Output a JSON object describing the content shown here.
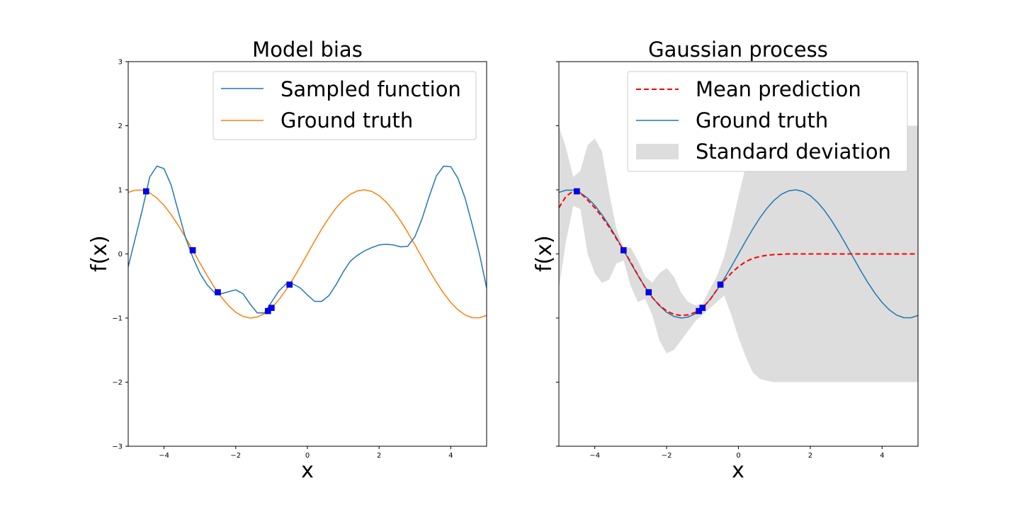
{
  "chart_data": [
    {
      "type": "line",
      "title": "Model bias",
      "xlabel": "x",
      "ylabel": "f(x)",
      "xlim": [
        -5,
        5
      ],
      "ylim": [
        -3,
        3
      ],
      "xticks": [
        -4,
        -2,
        0,
        2,
        4
      ],
      "xtick_labels": [
        "−4",
        "−2",
        "0",
        "2",
        "4"
      ],
      "yticks": [
        -3,
        -2,
        -1,
        0,
        1,
        2,
        3
      ],
      "ytick_labels": [
        "−3",
        "−2",
        "−1",
        "0",
        "1",
        "2",
        "3"
      ],
      "legend_position": "top-right",
      "series": [
        {
          "name": "Sampled function",
          "color": "#1f77b4",
          "style": "solid",
          "x": [
            -5.0,
            -4.6,
            -4.4,
            -4.2,
            -4.0,
            -3.8,
            -3.6,
            -3.4,
            -3.2,
            -3.0,
            -2.8,
            -2.6,
            -2.4,
            -2.2,
            -2.0,
            -1.8,
            -1.6,
            -1.4,
            -1.2,
            -1.0,
            -0.8,
            -0.6,
            -0.4,
            -0.2,
            0.0,
            0.2,
            0.4,
            0.6,
            0.8,
            1.0,
            1.2,
            1.4,
            1.6,
            1.8,
            2.0,
            2.2,
            2.4,
            2.6,
            2.8,
            3.0,
            3.2,
            3.4,
            3.6,
            3.8,
            4.0,
            4.2,
            4.4,
            4.6,
            4.8,
            5.0
          ],
          "y": [
            -0.2,
            0.7,
            1.2,
            1.37,
            1.33,
            1.07,
            0.66,
            0.25,
            -0.05,
            -0.3,
            -0.48,
            -0.6,
            -0.62,
            -0.59,
            -0.56,
            -0.62,
            -0.78,
            -0.92,
            -0.92,
            -0.75,
            -0.58,
            -0.47,
            -0.47,
            -0.53,
            -0.64,
            -0.74,
            -0.74,
            -0.65,
            -0.48,
            -0.28,
            -0.11,
            -0.02,
            0.05,
            0.1,
            0.14,
            0.15,
            0.14,
            0.11,
            0.12,
            0.27,
            0.55,
            0.9,
            1.22,
            1.37,
            1.36,
            1.18,
            0.87,
            0.45,
            0.0,
            -0.53
          ]
        },
        {
          "name": "Ground truth",
          "color": "#ff7f0e",
          "style": "solid",
          "x": [
            -5.0,
            -4.8,
            -4.6,
            -4.4,
            -4.2,
            -4.0,
            -3.8,
            -3.6,
            -3.4,
            -3.2,
            -3.0,
            -2.8,
            -2.6,
            -2.4,
            -2.2,
            -2.0,
            -1.8,
            -1.6,
            -1.4,
            -1.2,
            -1.0,
            -0.8,
            -0.6,
            -0.4,
            -0.2,
            0.0,
            0.2,
            0.4,
            0.6,
            0.8,
            1.0,
            1.2,
            1.4,
            1.6,
            1.8,
            2.0,
            2.2,
            2.4,
            2.6,
            2.8,
            3.0,
            3.2,
            3.4,
            3.6,
            3.8,
            4.0,
            4.2,
            4.4,
            4.6,
            4.8,
            5.0
          ],
          "y": [
            0.959,
            0.996,
            0.994,
            0.952,
            0.872,
            0.757,
            0.612,
            0.443,
            0.256,
            0.058,
            -0.141,
            -0.335,
            -0.516,
            -0.675,
            -0.808,
            -0.909,
            -0.974,
            -1.0,
            -0.985,
            -0.932,
            -0.841,
            -0.717,
            -0.565,
            -0.389,
            -0.199,
            0.0,
            0.199,
            0.389,
            0.565,
            0.717,
            0.841,
            0.932,
            0.985,
            1.0,
            0.974,
            0.909,
            0.808,
            0.675,
            0.516,
            0.335,
            0.141,
            -0.058,
            -0.256,
            -0.443,
            -0.612,
            -0.757,
            -0.872,
            -0.952,
            -0.994,
            -0.996,
            -0.959
          ]
        }
      ],
      "observations": {
        "x": [
          -4.5,
          -3.2,
          -2.5,
          -1.1,
          -1.0,
          -0.5
        ],
        "y": [
          0.977,
          0.058,
          -0.598,
          -0.891,
          -0.841,
          -0.479
        ]
      }
    },
    {
      "type": "line",
      "title": "Gaussian process",
      "xlabel": "x",
      "ylabel": "f(x)",
      "xlim": [
        -5,
        5
      ],
      "ylim": [
        -3,
        3
      ],
      "xticks": [
        -4,
        -2,
        0,
        2,
        4
      ],
      "xtick_labels": [
        "−4",
        "−2",
        "0",
        "2",
        "4"
      ],
      "yticks": [
        -3,
        -2,
        -1,
        0,
        1,
        2,
        3
      ],
      "ytick_labels": [],
      "legend_position": "top-right",
      "series": [
        {
          "name": "Mean prediction",
          "color": "#ff0000",
          "style": "dashed",
          "x": [
            -5.0,
            -4.8,
            -4.6,
            -4.4,
            -4.2,
            -4.0,
            -3.8,
            -3.6,
            -3.4,
            -3.2,
            -3.0,
            -2.8,
            -2.6,
            -2.4,
            -2.2,
            -2.0,
            -1.8,
            -1.6,
            -1.4,
            -1.2,
            -1.0,
            -0.8,
            -0.6,
            -0.4,
            -0.2,
            0.0,
            0.2,
            0.4,
            0.6,
            0.8,
            1.0,
            1.2,
            1.4,
            1.6,
            1.8,
            2.0,
            2.2,
            2.4,
            2.6,
            2.8,
            3.0,
            3.2,
            3.4,
            3.6,
            3.8,
            4.0,
            4.2,
            4.4,
            4.6,
            4.8,
            5.0
          ],
          "y": [
            0.72,
            0.9,
            0.98,
            0.95,
            0.84,
            0.72,
            0.58,
            0.42,
            0.24,
            0.06,
            -0.13,
            -0.33,
            -0.52,
            -0.68,
            -0.8,
            -0.89,
            -0.94,
            -0.96,
            -0.95,
            -0.91,
            -0.84,
            -0.72,
            -0.56,
            -0.42,
            -0.3,
            -0.2,
            -0.12,
            -0.07,
            -0.04,
            -0.02,
            -0.01,
            -0.005,
            0.0,
            0.0,
            0.0,
            0.0,
            0.0,
            0.0,
            0.0,
            0.0,
            0.0,
            0.0,
            0.0,
            0.0,
            0.0,
            0.0,
            0.0,
            0.0,
            0.0,
            0.0,
            0.0
          ]
        },
        {
          "name": "Ground truth",
          "color": "#1f77b4",
          "style": "solid",
          "x": [
            -5.0,
            -4.8,
            -4.6,
            -4.4,
            -4.2,
            -4.0,
            -3.8,
            -3.6,
            -3.4,
            -3.2,
            -3.0,
            -2.8,
            -2.6,
            -2.4,
            -2.2,
            -2.0,
            -1.8,
            -1.6,
            -1.4,
            -1.2,
            -1.0,
            -0.8,
            -0.6,
            -0.4,
            -0.2,
            0.0,
            0.2,
            0.4,
            0.6,
            0.8,
            1.0,
            1.2,
            1.4,
            1.6,
            1.8,
            2.0,
            2.2,
            2.4,
            2.6,
            2.8,
            3.0,
            3.2,
            3.4,
            3.6,
            3.8,
            4.0,
            4.2,
            4.4,
            4.6,
            4.8,
            5.0
          ],
          "y": [
            0.959,
            0.996,
            0.994,
            0.952,
            0.872,
            0.757,
            0.612,
            0.443,
            0.256,
            0.058,
            -0.141,
            -0.335,
            -0.516,
            -0.675,
            -0.808,
            -0.909,
            -0.974,
            -1.0,
            -0.985,
            -0.932,
            -0.841,
            -0.717,
            -0.565,
            -0.389,
            -0.199,
            0.0,
            0.199,
            0.389,
            0.565,
            0.717,
            0.841,
            0.932,
            0.985,
            1.0,
            0.974,
            0.909,
            0.808,
            0.675,
            0.516,
            0.335,
            0.141,
            -0.058,
            -0.256,
            -0.443,
            -0.612,
            -0.757,
            -0.872,
            -0.952,
            -0.994,
            -0.996,
            -0.959
          ]
        }
      ],
      "band": {
        "name": "Standard deviation",
        "color": "#dddddd",
        "x": [
          -5.0,
          -4.8,
          -4.6,
          -4.4,
          -4.2,
          -4.0,
          -3.8,
          -3.6,
          -3.4,
          -3.2,
          -3.0,
          -2.8,
          -2.6,
          -2.4,
          -2.2,
          -2.0,
          -1.8,
          -1.6,
          -1.4,
          -1.2,
          -1.0,
          -0.8,
          -0.6,
          -0.4,
          -0.2,
          0.0,
          0.2,
          0.4,
          0.6,
          0.8,
          1.0,
          1.2,
          1.4,
          1.6,
          1.8,
          2.0,
          2.5,
          3.0,
          3.5,
          4.0,
          4.5,
          5.0
        ],
        "upper": [
          2.0,
          1.65,
          1.2,
          1.3,
          1.7,
          1.8,
          1.6,
          0.95,
          0.4,
          0.1,
          0.1,
          -0.1,
          -0.35,
          -0.45,
          -0.3,
          -0.22,
          -0.35,
          -0.6,
          -0.75,
          -0.8,
          -0.78,
          -0.55,
          -0.35,
          -0.05,
          0.4,
          0.9,
          1.35,
          1.65,
          1.85,
          1.95,
          1.98,
          2.0,
          2.0,
          2.0,
          2.0,
          2.0,
          2.0,
          2.0,
          2.0,
          2.0,
          2.0,
          2.0
        ],
        "lower": [
          -0.55,
          0.2,
          0.75,
          0.7,
          0.0,
          -0.3,
          -0.45,
          -0.4,
          -0.15,
          -0.1,
          -0.5,
          -0.75,
          -0.7,
          -0.95,
          -1.35,
          -1.55,
          -1.5,
          -1.35,
          -1.2,
          -1.05,
          -0.95,
          -0.85,
          -0.75,
          -0.65,
          -0.95,
          -1.3,
          -1.6,
          -1.85,
          -1.95,
          -1.98,
          -2.0,
          -2.0,
          -2.0,
          -2.0,
          -2.0,
          -2.0,
          -2.0,
          -2.0,
          -2.0,
          -2.0,
          -2.0,
          -2.0
        ]
      },
      "observations": {
        "x": [
          -4.5,
          -3.2,
          -2.5,
          -1.1,
          -1.0,
          -0.5
        ],
        "y": [
          0.977,
          0.058,
          -0.598,
          -0.891,
          -0.841,
          -0.479
        ]
      }
    }
  ]
}
